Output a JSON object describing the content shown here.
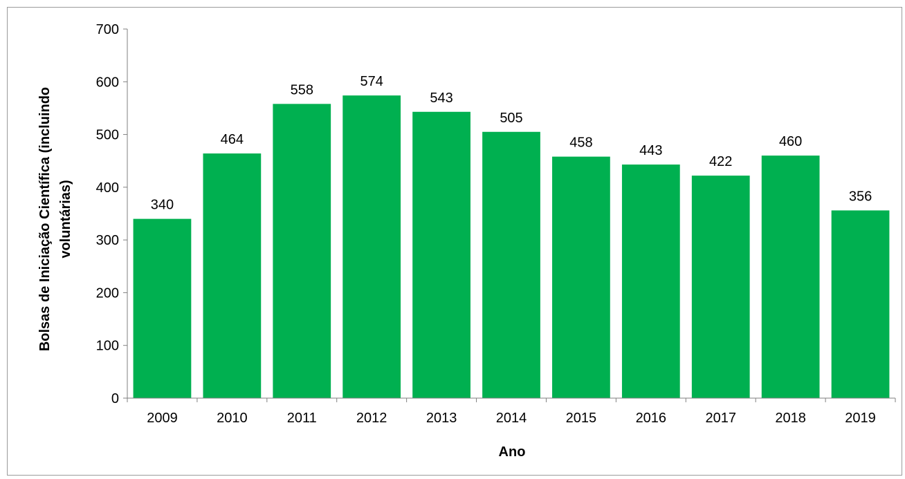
{
  "chart_data": {
    "type": "bar",
    "categories": [
      "2009",
      "2010",
      "2011",
      "2012",
      "2013",
      "2014",
      "2015",
      "2016",
      "2017",
      "2018",
      "2019"
    ],
    "values": [
      340,
      464,
      558,
      574,
      543,
      505,
      458,
      443,
      422,
      460,
      356
    ],
    "data_labels": [
      "340",
      "464",
      "558",
      "574",
      "543",
      "505",
      "458",
      "443",
      "422",
      "460",
      "356"
    ],
    "title": "",
    "xlabel": "Ano",
    "ylabel_lines": [
      "Bolsas de Iniciação Científica (incluindo",
      "voluntárias)"
    ],
    "ylim": [
      0,
      700
    ],
    "yticks": [
      0,
      100,
      200,
      300,
      400,
      500,
      600,
      700
    ],
    "ytick_labels": [
      "0",
      "100",
      "200",
      "300",
      "400",
      "500",
      "600",
      "700"
    ],
    "grid": false,
    "legend": "none",
    "bar_color": "#00b050"
  }
}
